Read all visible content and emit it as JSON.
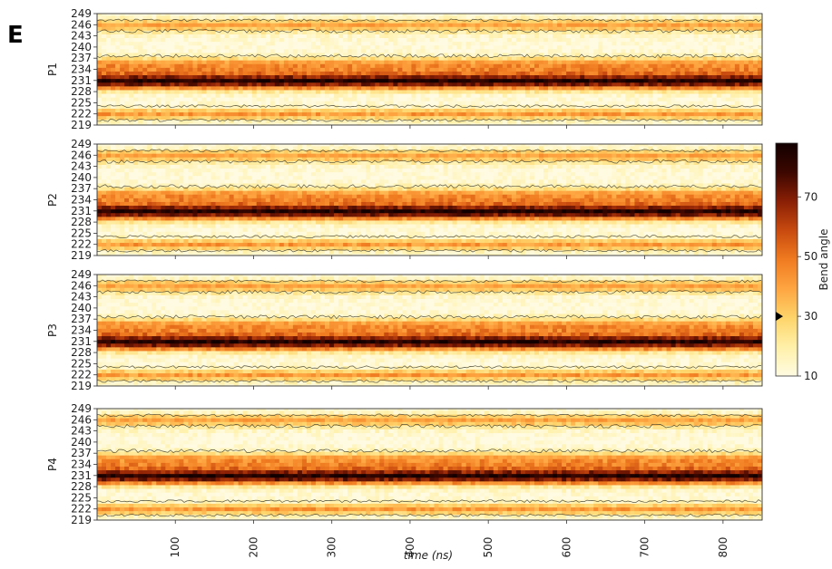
{
  "panel_letter": "E",
  "chart_data": {
    "type": "heatmap",
    "xlabel": "time (ns)",
    "xlim": [
      0,
      850
    ],
    "x_ticks": [
      100,
      200,
      300,
      400,
      500,
      600,
      700,
      800
    ],
    "y_ticks": [
      219,
      222,
      225,
      228,
      231,
      234,
      237,
      240,
      243,
      246,
      249
    ],
    "ylim": [
      219,
      249
    ],
    "colorbar": {
      "label": "Bend angle",
      "ticks": [
        10,
        30,
        50,
        70
      ],
      "range": [
        10,
        88
      ],
      "colors": [
        "#fffbe2",
        "#fff0a8",
        "#fed46a",
        "#fea541",
        "#f07b20",
        "#c84a0f",
        "#8a1f05",
        "#3c0700",
        "#120000"
      ],
      "marker_value": 30
    },
    "panels": [
      {
        "name": "P1"
      },
      {
        "name": "P2"
      },
      {
        "name": "P3"
      },
      {
        "name": "P4"
      }
    ],
    "residue_profile": {
      "residues": [
        219,
        220,
        221,
        222,
        223,
        224,
        225,
        226,
        227,
        228,
        229,
        230,
        231,
        232,
        233,
        234,
        235,
        236,
        237,
        238,
        239,
        240,
        241,
        242,
        243,
        244,
        245,
        246,
        247,
        248,
        249
      ],
      "bend_angle": [
        12,
        16,
        30,
        42,
        30,
        16,
        12,
        12,
        14,
        22,
        44,
        70,
        84,
        68,
        52,
        47,
        45,
        40,
        26,
        16,
        12,
        11,
        11,
        12,
        14,
        20,
        32,
        40,
        30,
        16,
        12
      ]
    }
  }
}
